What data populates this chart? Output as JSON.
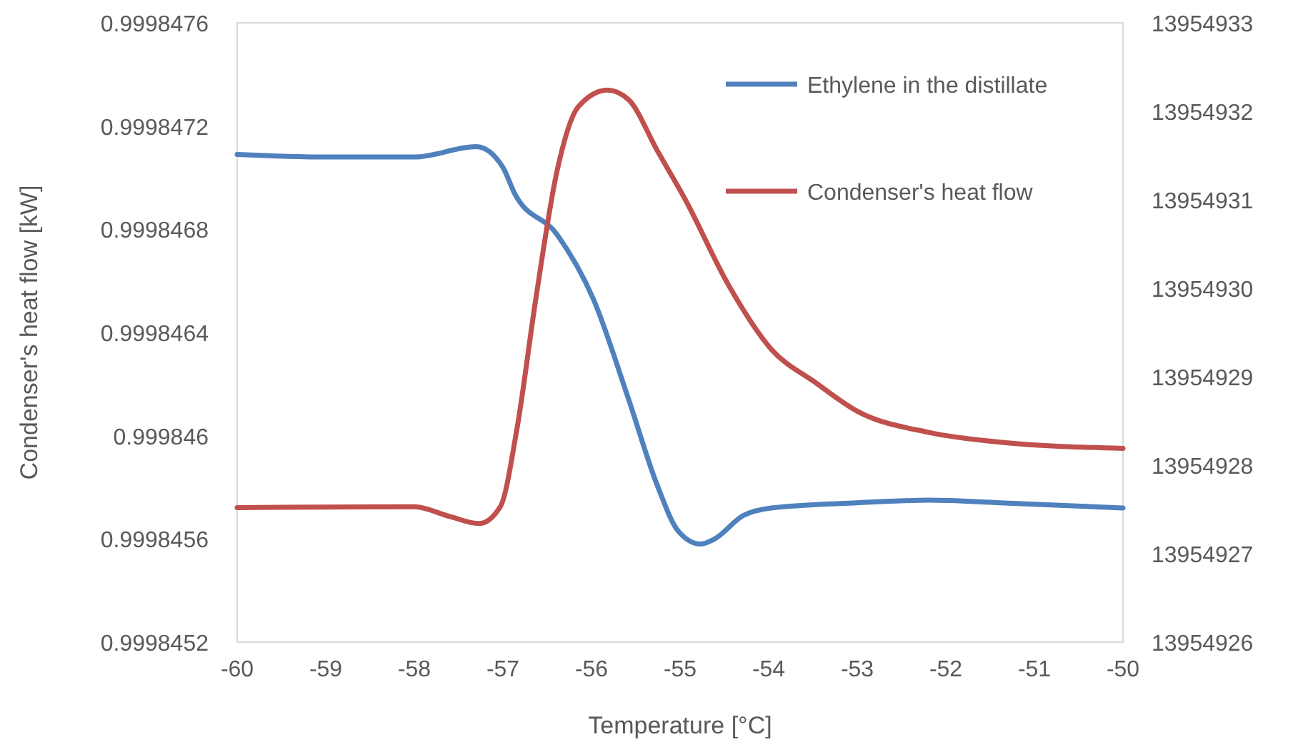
{
  "chart_data": {
    "type": "line",
    "xlabel": "Temperature [°C]",
    "ylabel": "Condenser's heat flow [kW]",
    "xlim": [
      -60,
      -50
    ],
    "xticks": [
      -60,
      -59,
      -58,
      -57,
      -56,
      -55,
      -54,
      -53,
      -52,
      -51,
      -50
    ],
    "ylim": [
      0.9998452,
      0.9998476
    ],
    "yticks": [
      0.9998452,
      0.9998456,
      0.999846,
      0.9998464,
      0.9998468,
      0.9998472,
      0.9998476
    ],
    "y2lim": [
      13954926,
      13954933
    ],
    "y2ticks": [
      13954926,
      13954927,
      13954928,
      13954929,
      13954930,
      13954931,
      13954932,
      13954933
    ],
    "legend": "top right",
    "grid": false,
    "marker": "none",
    "line_style": "solid",
    "series": [
      {
        "name": "Ethylene in the distillate",
        "color": "#4f81bd",
        "x": [
          -60,
          -59,
          -58,
          -57.3,
          -57.0,
          -56.87,
          -56.39,
          -55.98,
          -55.58,
          -55.26,
          -55.02,
          -54.77,
          -54.61,
          -54.29,
          -53.97,
          -53.0,
          -52.19,
          -51.39,
          -50
        ],
        "values": [
          0.99984709,
          0.99984708,
          0.99984708,
          0.99984712,
          0.99984704,
          0.99984694,
          0.99984678,
          0.99984653,
          0.99984614,
          0.99984581,
          0.99984563,
          0.99984558,
          0.9998456,
          0.99984569,
          0.99984572,
          0.99984574,
          0.99984575,
          0.99984574,
          0.99984572
        ]
      },
      {
        "name": "Condenser's heat flow",
        "color": "#c0504d",
        "axis": "y2",
        "x": [
          -60,
          -58,
          -57.6,
          -57.27,
          -57.03,
          -56.84,
          -56.63,
          -56.39,
          -56.15,
          -55.82,
          -55.58,
          -55.26,
          -54.94,
          -54.45,
          -53.97,
          -53.48,
          -53.0,
          -52.19,
          -51.39,
          -50
        ],
        "values": [
          13954927.52,
          13954927.53,
          13954927.42,
          13954927.34,
          13954927.53,
          13954928.42,
          13954929.87,
          13954931.32,
          13954932.05,
          13954932.24,
          13954932.13,
          13954931.56,
          13954931.0,
          13954930.03,
          13954929.31,
          13954928.94,
          13954928.61,
          13954928.37,
          13954928.26,
          13954928.19
        ]
      }
    ]
  }
}
